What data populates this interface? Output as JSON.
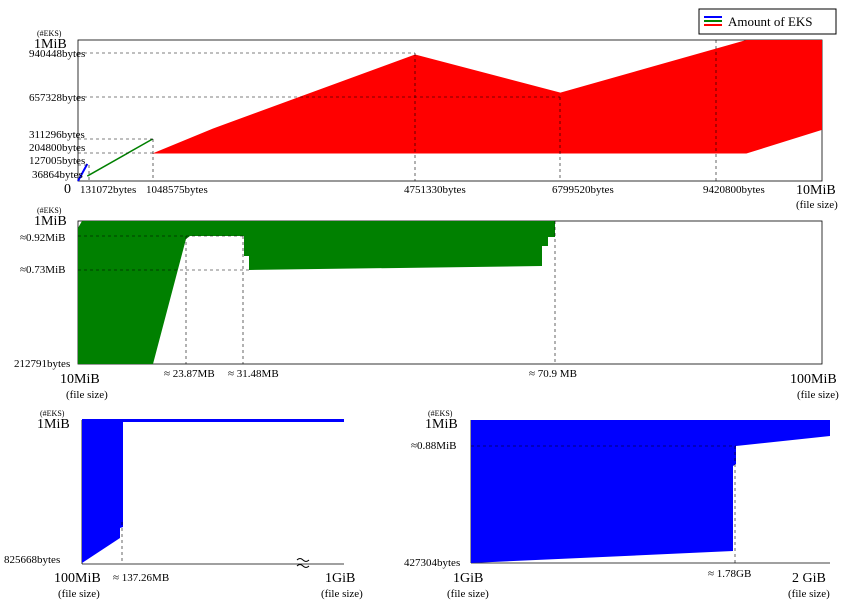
{
  "legend": {
    "label": "Amount of EKS",
    "colors": [
      "#0000ff",
      "#008000",
      "#ff0000"
    ]
  },
  "common": {
    "unit_label": "(#EKS)",
    "file_size_label": "(file size)",
    "break_mark": "≈"
  },
  "chart_data": [
    {
      "type": "area",
      "x_range": [
        "0",
        "10MiB"
      ],
      "top_label": "1MiB",
      "x_ticks": [
        "0",
        "131072bytes",
        "1048575bytes",
        "4751330bytes",
        "6799520bytes",
        "9420800bytes",
        "10MiB"
      ],
      "y_ticks": [
        "1MiB",
        "940448bytes",
        "657328bytes",
        "311296bytes",
        "204800bytes",
        "127005bytes",
        "36864bytes"
      ],
      "series": [
        {
          "color": "#0000ff",
          "points": [
            [
              0,
              0
            ],
            [
              131072,
              127005
            ]
          ]
        },
        {
          "color": "#008000",
          "points": [
            [
              131072,
              36864
            ],
            [
              1048575,
              311296
            ]
          ]
        },
        {
          "color": "#ff0000",
          "upper": [
            [
              1048575,
              204800
            ],
            [
              1900000,
              390000
            ],
            [
              4751330,
              940448
            ],
            [
              6799520,
              657328
            ],
            [
              9420800,
              1048576
            ],
            [
              10485760,
              1048576
            ]
          ],
          "lower": [
            [
              1048575,
              204800
            ],
            [
              1900000,
              204800
            ],
            [
              4751330,
              204800
            ],
            [
              6799520,
              204800
            ],
            [
              9420800,
              204800
            ],
            [
              10485760,
              380000
            ]
          ]
        }
      ]
    },
    {
      "type": "area",
      "x_range": [
        "10MiB",
        "100MiB"
      ],
      "top_label": "1MiB",
      "y_ticks": [
        "≈0.92MiB",
        "≈0.73MiB",
        "212791bytes"
      ],
      "x_ticks": [
        "10MiB",
        "≈ 23.87MB",
        "≈ 31.48MB",
        "≈ 70.9 MB",
        "100MiB"
      ],
      "series": [
        {
          "color": "#008000",
          "name": ""
        }
      ]
    },
    {
      "type": "area",
      "x_range": [
        "100MiB",
        "1GiB"
      ],
      "top_label": "1MiB",
      "y_ticks": [
        "825668bytes"
      ],
      "x_ticks": [
        "100MiB",
        "≈ 137.26MB",
        "1GiB"
      ],
      "series": [
        {
          "color": "#0000ff"
        }
      ]
    },
    {
      "type": "area",
      "x_range": [
        "1GiB",
        "2 GiB"
      ],
      "top_label": "1MiB",
      "y_ticks": [
        "≈0.88MiB",
        "427304bytes"
      ],
      "x_ticks": [
        "1GiB",
        "≈ 1.78GB",
        "2 GiB"
      ],
      "series": [
        {
          "color": "#0000ff"
        }
      ]
    }
  ]
}
